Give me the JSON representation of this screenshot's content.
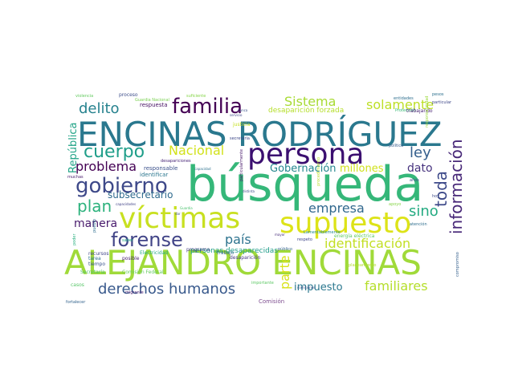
{
  "words": [
    {
      "text": "búsqueda",
      "color": "#35b779"
    },
    {
      "text": "ALEJANDRO ENCINAS",
      "color": "#a0da39"
    },
    {
      "text": "ENCINAS RODRÍGUEZ",
      "color": "#2a788e"
    },
    {
      "text": "persona",
      "color": "#3b0f70"
    },
    {
      "text": "víctimas",
      "color": "#c8e020"
    },
    {
      "text": "supuesto",
      "color": "#dde318"
    },
    {
      "text": "forense",
      "color": "#414487"
    },
    {
      "text": "gobierno",
      "color": "#3e4989"
    },
    {
      "text": "familia",
      "color": "#440154"
    },
    {
      "text": "cuerpo",
      "color": "#1f9e89"
    },
    {
      "text": "información",
      "color": "#482878"
    },
    {
      "text": "derechos humanos",
      "color": "#38598c"
    },
    {
      "text": "familiares",
      "color": "#b5de2b"
    },
    {
      "text": "identificación",
      "color": "#c2df23"
    },
    {
      "text": "delito",
      "color": "#26828e"
    },
    {
      "text": "problema",
      "color": "#440154"
    },
    {
      "text": "Sistema",
      "color": "#a8db34"
    },
    {
      "text": "solamente",
      "color": "#bddf26"
    },
    {
      "text": "plan",
      "color": "#2db27d"
    },
    {
      "text": "empresa",
      "color": "#31688e"
    },
    {
      "text": "país",
      "color": "#2c728e"
    },
    {
      "text": "Nacional",
      "color": "#d2e21b"
    },
    {
      "text": "toda",
      "color": "#3e4a89"
    },
    {
      "text": "ley",
      "color": "#355f8d"
    },
    {
      "text": "sino",
      "color": "#25ab82"
    },
    {
      "text": "manera",
      "color": "#481a6c"
    },
    {
      "text": "parte",
      "color": "#d8e219"
    },
    {
      "text": "dato",
      "color": "#46327e"
    },
    {
      "text": "impuesto",
      "color": "#2a778e"
    },
    {
      "text": "Gobernación",
      "color": "#24878e"
    },
    {
      "text": "millones",
      "color": "#d0e11c"
    },
    {
      "text": "República",
      "color": "#20a386"
    },
    {
      "text": "subsecretario",
      "color": "#2f6b8e"
    },
    {
      "text": "personas desaparecidas",
      "color": "#1e9c89"
    },
    {
      "text": "desaparición forzada",
      "color": "#b5de2b"
    },
    {
      "text": "respuesta",
      "color": "#471164"
    },
    {
      "text": "responsable",
      "color": "#3b518b"
    },
    {
      "text": "identificar",
      "color": "#2a768e"
    },
    {
      "text": "Comisión",
      "color": "#7e4e90"
    },
    {
      "text": "desaparición",
      "color": "#443983"
    },
    {
      "text": "Electricidad",
      "color": "#27ad81"
    },
    {
      "text": "recursos",
      "color": "#404688"
    },
    {
      "text": "tiempo",
      "color": "#3a548c"
    },
    {
      "text": "tarea",
      "color": "#2c738e"
    },
    {
      "text": "posible",
      "color": "#481f70"
    },
    {
      "text": "proceso",
      "color": "#3d4e8a"
    },
    {
      "text": "Secretaría",
      "color": "#52c569"
    },
    {
      "text": "Comisión Federal",
      "color": "#65cb5e"
    },
    {
      "text": "programa",
      "color": "#443b84"
    },
    {
      "text": "trabajo",
      "color": "#31688e"
    },
    {
      "text": "justicia",
      "color": "#c5e021"
    },
    {
      "text": "Guardia Nacional",
      "color": "#7ad151"
    },
    {
      "text": "energía eléctrica",
      "color": "#5ec962"
    },
    {
      "text": "mayor",
      "color": "#472d7b"
    },
    {
      "text": "respeto",
      "color": "#404588"
    },
    {
      "text": "comisiones",
      "color": "#3b528b"
    },
    {
      "text": "público",
      "color": "#33638d"
    },
    {
      "text": "Lamentablemente",
      "color": "#238a8d"
    },
    {
      "text": "atención",
      "color": "#2e6e8e"
    },
    {
      "text": "hoy",
      "color": "#3e4c8a"
    },
    {
      "text": "años",
      "color": "#3b528b"
    },
    {
      "text": "pesos",
      "color": "#2d708e"
    },
    {
      "text": "entidades",
      "color": "#2e6f8e"
    },
    {
      "text": "particular",
      "color": "#3f4889"
    },
    {
      "text": "política",
      "color": "#365d8d"
    },
    {
      "text": "Protección",
      "color": "#3aba76"
    },
    {
      "text": "trabajando",
      "color": "#482374"
    },
    {
      "text": "capacidad",
      "color": "#2c718e"
    },
    {
      "text": "capacidades",
      "color": "#414287"
    },
    {
      "text": "desapariciones",
      "color": "#482677"
    },
    {
      "text": "servicio",
      "color": "#3f4788"
    },
    {
      "text": "secretaría",
      "color": "#3e4989"
    },
    {
      "text": "nunca",
      "color": "#3b528b"
    },
    {
      "text": "suficiente",
      "color": "#86d549"
    },
    {
      "text": "violencia",
      "color": "#63cb5f"
    },
    {
      "text": "muchas",
      "color": "#481b6d"
    },
    {
      "text": "poder",
      "color": "#29af7f"
    },
    {
      "text": "saber",
      "color": "#22a884"
    },
    {
      "text": "dar",
      "color": "#3c4f8a"
    },
    {
      "text": "casos",
      "color": "#56c667"
    },
    {
      "text": "fortalecer",
      "color": "#33638d"
    },
    {
      "text": "importante",
      "color": "#5cc863"
    },
    {
      "text": "migrante",
      "color": "#482173"
    },
    {
      "text": "pueblo",
      "color": "#2e6e8e"
    },
    {
      "text": "Guardia",
      "color": "#4ac16d"
    },
    {
      "text": "distinta",
      "color": "#3d4e8a"
    },
    {
      "text": "apoyo",
      "color": "#87d549"
    },
    {
      "text": "planeamiento",
      "color": "#b0dd2f"
    },
    {
      "text": "compromiso",
      "color": "#35608d"
    },
    {
      "text": "particularmente",
      "color": "#481a6c"
    },
    {
      "text": "responsabilidad",
      "color": "#9bd93c"
    },
    {
      "text": "procedimiento",
      "color": "#b8de29"
    }
  ]
}
